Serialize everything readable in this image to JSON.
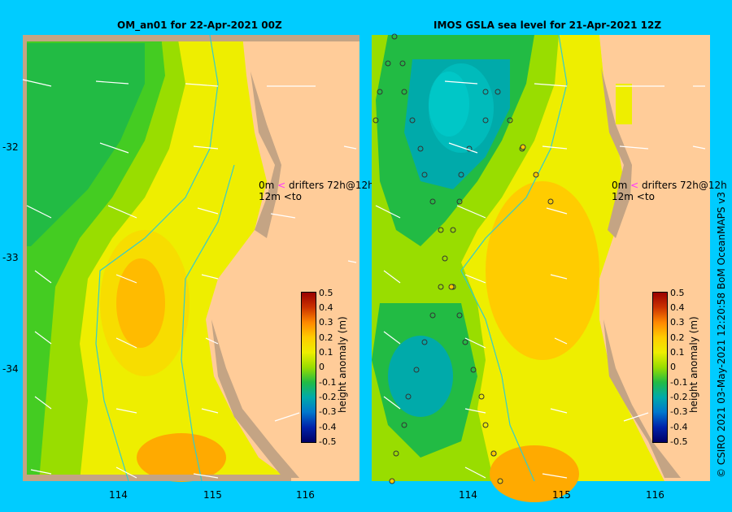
{
  "panels": [
    {
      "title": "OM_an01  for 22-Apr-2021 00Z"
    },
    {
      "title": "IMOS GSLA sea level  for 21-Apr-2021 12Z"
    }
  ],
  "y_ticks": [
    "-32",
    "-33",
    "-34"
  ],
  "x_ticks": [
    "114",
    "115",
    "116"
  ],
  "legend": {
    "line1_label": "0m",
    "line1_text": "drifters 72h@12h",
    "line2_label": "12m",
    "line2_text": "to",
    "arrow1_color": "#ff33ff",
    "arrow2_color": "#000000"
  },
  "colorbar": {
    "title": "height anomaly (m)",
    "labels": [
      "0.5",
      "0.4",
      "0.3",
      "0.2",
      "0.1",
      "0",
      "-0.1",
      "-0.2",
      "-0.3",
      "-0.4",
      "-0.5"
    ],
    "colors": [
      "#990000",
      "#cc3300",
      "#ff8800",
      "#ffcc00",
      "#eeee00",
      "#99dd00",
      "#22bb44",
      "#00aaaa",
      "#0077cc",
      "#0022aa",
      "#000066"
    ]
  },
  "credit": "© CSIRO 2021   03-May-2021 12:20:58 BoM OceanMAPS v3"
}
